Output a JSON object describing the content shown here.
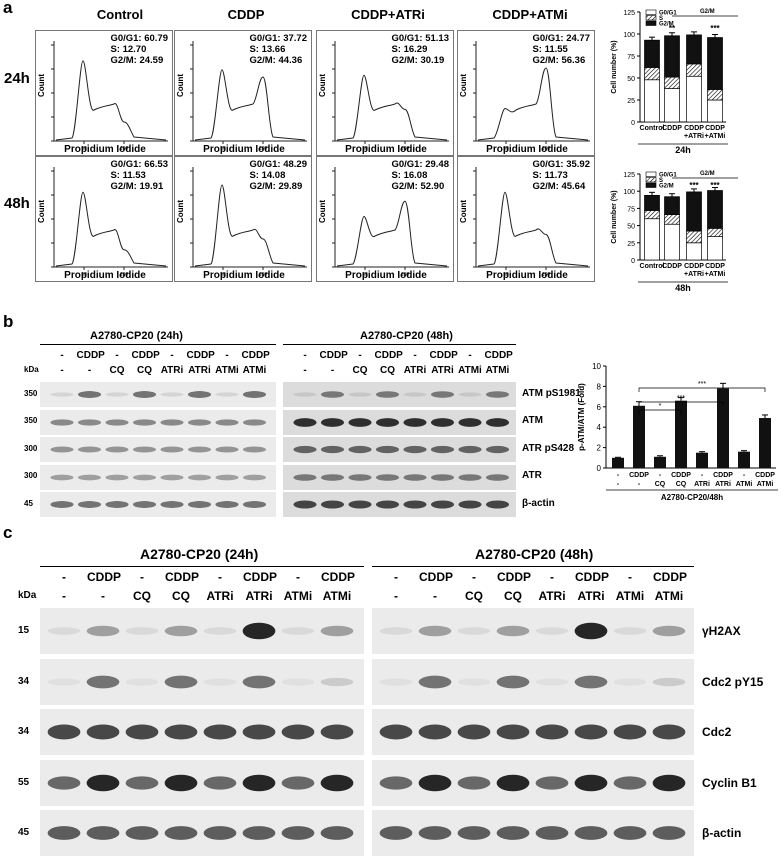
{
  "panel_a": {
    "letter": "a",
    "columns": [
      "Control",
      "CDDP",
      "CDDP+ATRi",
      "CDDP+ATMi"
    ],
    "rows": [
      "24h",
      "48h"
    ],
    "y_axis_label": "Count",
    "x_axis_label": "Propidium Iodide",
    "histograms": [
      {
        "g0g1": "G0/G1: 60.79",
        "s": "S: 12.70",
        "g2m": "G2/M: 24.59"
      },
      {
        "g0g1": "G0/G1: 37.72",
        "s": "S: 13.66",
        "g2m": "G2/M: 44.36"
      },
      {
        "g0g1": "G0/G1: 51.13",
        "s": "S: 16.29",
        "g2m": "G2/M: 30.19"
      },
      {
        "g0g1": "G0/G1: 24.77",
        "s": "S: 11.55",
        "g2m": "G2/M: 56.36"
      },
      {
        "g0g1": "G0/G1: 66.53",
        "s": "S: 11.53",
        "g2m": "G2/M: 19.91"
      },
      {
        "g0g1": "G0/G1: 48.29",
        "s": "S: 14.08",
        "g2m": "G2/M: 29.89"
      },
      {
        "g0g1": "G0/G1: 29.48",
        "s": "S: 16.08",
        "g2m": "G2/M: 52.90"
      },
      {
        "g0g1": "G0/G1: 35.92",
        "s": "S: 11.73",
        "g2m": "G2/M: 45.64"
      }
    ]
  },
  "chart_data": [
    {
      "type": "bar",
      "title": "24h",
      "ylabel": "Cell number (%)",
      "ylim": [
        0,
        125
      ],
      "yticks": [
        "0",
        "25",
        "50",
        "75",
        "100",
        "125"
      ],
      "categories": [
        "Control",
        "CDDP",
        "CDDP +ATRi",
        "CDDP +ATMi"
      ],
      "legend": [
        "G0/G1",
        "S",
        "G2/M"
      ],
      "series": [
        {
          "name": "G0/G1",
          "values": [
            48,
            38,
            52,
            25
          ]
        },
        {
          "name": "S",
          "values": [
            14,
            13,
            14,
            12
          ]
        },
        {
          "name": "G2/M",
          "values": [
            31,
            47,
            33,
            59
          ]
        }
      ],
      "annotations": [
        "G2/M",
        "**",
        "***"
      ]
    },
    {
      "type": "bar",
      "title": "48h",
      "ylabel": "Cell number (%)",
      "ylim": [
        0,
        125
      ],
      "yticks": [
        "0",
        "25",
        "50",
        "75",
        "100",
        "125"
      ],
      "categories": [
        "Control",
        "CDDP",
        "CDDP +ATRi",
        "CDDP +ATMi"
      ],
      "legend": [
        "G0/G1",
        "S",
        "G2/M"
      ],
      "series": [
        {
          "name": "G0/G1",
          "values": [
            60,
            52,
            25,
            34
          ]
        },
        {
          "name": "S",
          "values": [
            12,
            14,
            17,
            12
          ]
        },
        {
          "name": "G2/M",
          "values": [
            22,
            26,
            57,
            55
          ]
        }
      ],
      "annotations": [
        "G2/M",
        "***",
        "***"
      ]
    },
    {
      "type": "bar",
      "ylabel": "p-ATM/ATM (Fold)",
      "xlabel": "A2780-CP20/48h",
      "ylim": [
        0,
        10
      ],
      "yticks": [
        "0",
        "2",
        "4",
        "6",
        "8",
        "10"
      ],
      "row1": [
        "-",
        "CDDP",
        "-",
        "CDDP",
        "-",
        "CDDP",
        "-",
        "CDDP"
      ],
      "row2": [
        "-",
        "-",
        "CQ",
        "CQ",
        "ATRi",
        "ATRi",
        "ATMi",
        "ATMi"
      ],
      "values": [
        1.0,
        6.1,
        1.1,
        6.6,
        1.5,
        7.8,
        1.6,
        4.9
      ],
      "errors": [
        0.05,
        0.4,
        0.1,
        0.3,
        0.1,
        0.5,
        0.1,
        0.3
      ],
      "annotations": [
        "*",
        "***",
        "***"
      ]
    }
  ],
  "panel_b": {
    "letter": "b",
    "left_title": "A2780-CP20 (24h)",
    "right_title": "A2780-CP20 (48h)",
    "row1": [
      "-",
      "CDDP",
      "-",
      "CDDP",
      "-",
      "CDDP",
      "-",
      "CDDP"
    ],
    "row2": [
      "-",
      "-",
      "CQ",
      "CQ",
      "ATRi",
      "ATRi",
      "ATMi",
      "ATMi"
    ],
    "kda_label": "kDa",
    "kda": [
      "350",
      "350",
      "300",
      "300",
      "45"
    ],
    "proteins": [
      "ATM pS1981",
      "ATM",
      "ATR pS428",
      "ATR",
      "β-actin"
    ]
  },
  "panel_c": {
    "letter": "c",
    "left_title": "A2780-CP20 (24h)",
    "right_title": "A2780-CP20 (48h)",
    "row1": [
      "-",
      "CDDP",
      "-",
      "CDDP",
      "-",
      "CDDP",
      "-",
      "CDDP"
    ],
    "row2": [
      "-",
      "-",
      "CQ",
      "CQ",
      "ATRi",
      "ATRi",
      "ATMi",
      "ATMi"
    ],
    "kda_label": "kDa",
    "kda": [
      "15",
      "34",
      "34",
      "55",
      "45"
    ],
    "proteins": [
      "γH2AX",
      "Cdc2 pY15",
      "Cdc2",
      "Cyclin B1",
      "β-actin"
    ]
  }
}
